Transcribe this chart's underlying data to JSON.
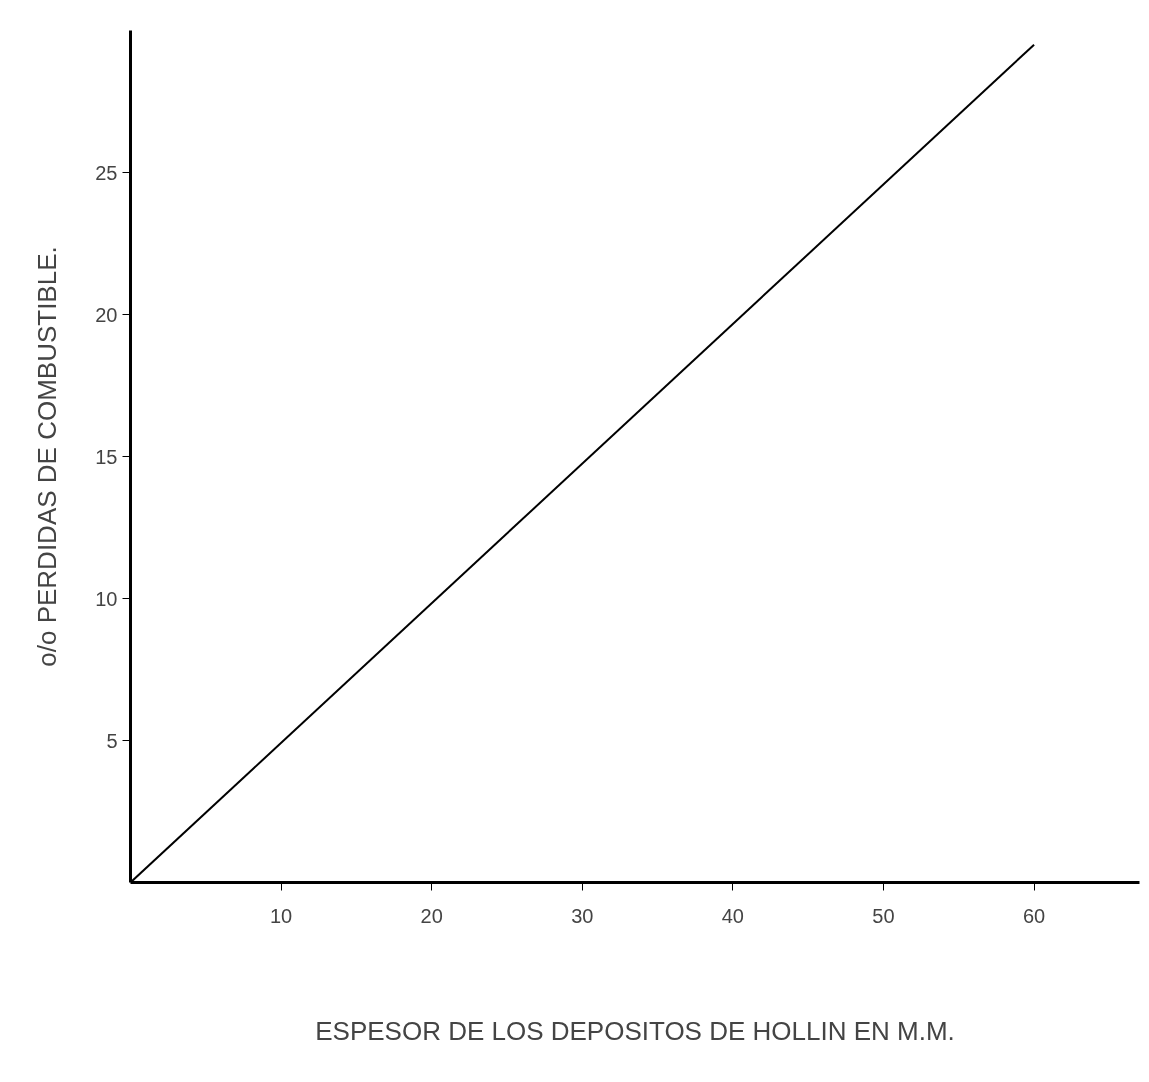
{
  "chart_data": {
    "type": "line",
    "xlabel": "ESPESOR DE LOS DEPOSITOS DE HOLLIN EN M.M.",
    "ylabel": "o/o PERDIDAS DE COMBUSTIBLE.",
    "x": [
      0,
      60
    ],
    "series": [
      {
        "color": "#000000",
        "values": [
          0,
          29.5
        ]
      }
    ],
    "xlim": [
      0,
      67
    ],
    "ylim": [
      0,
      30
    ],
    "xticks": [
      10,
      20,
      30,
      40,
      50,
      60
    ],
    "yticks": [
      5,
      10,
      15,
      20,
      25
    ],
    "grid": false,
    "marker": "none",
    "line_style": "solid"
  }
}
